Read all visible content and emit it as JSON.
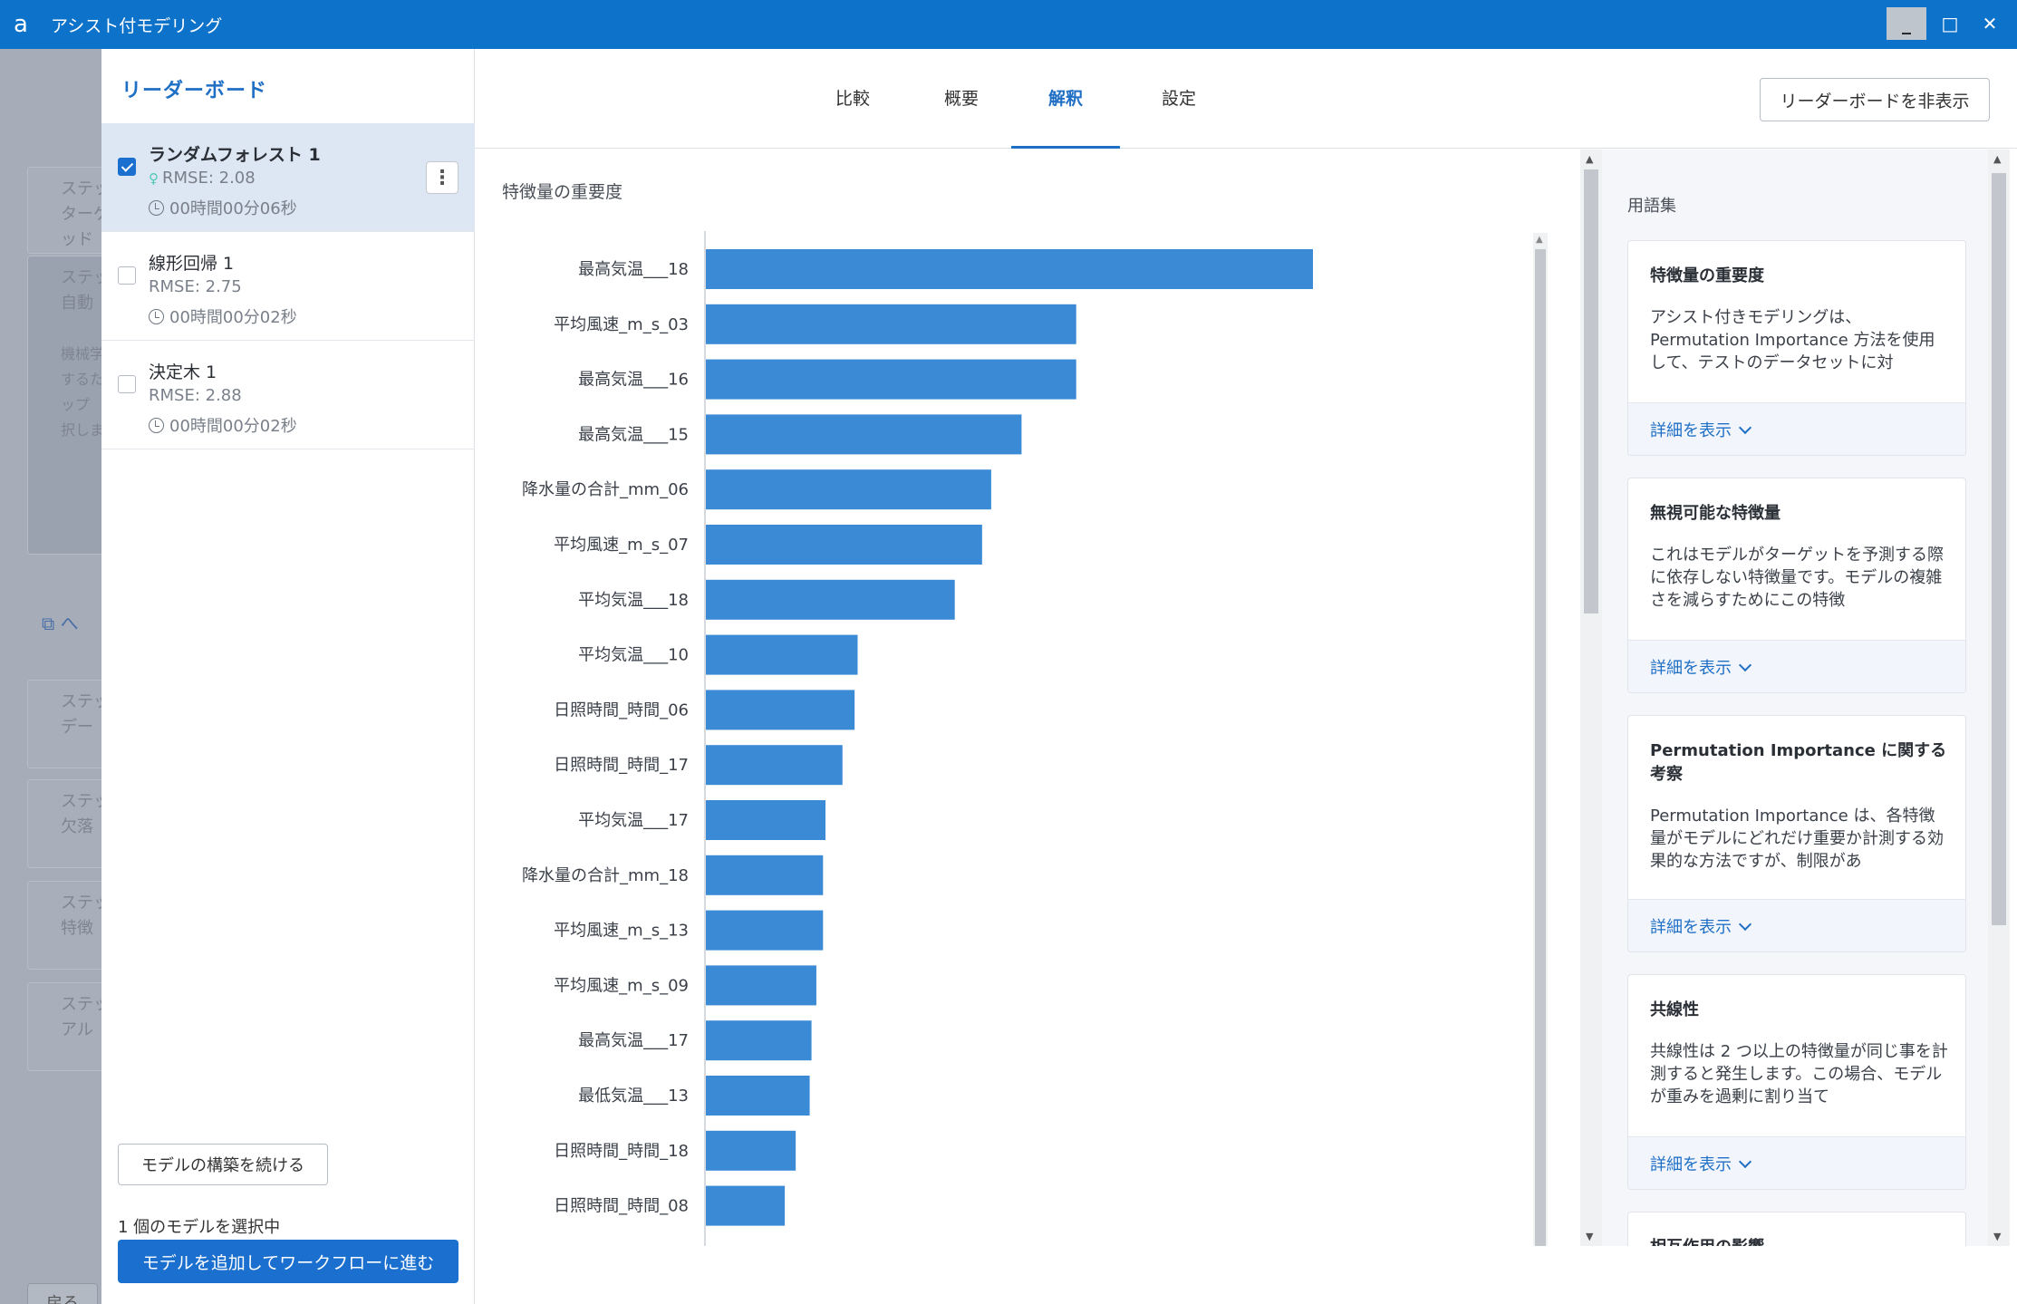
{
  "window": {
    "title": "アシスト付モデリング",
    "app_icon": "a"
  },
  "background": {
    "cards": [
      "ステップ\nターゲ\nッド",
      "ステップ\n自動",
      "機械学\nするた\nップ\n択しま",
      "ステップ\nデー",
      "ステップ\n欠落",
      "ステップ\n特徴",
      "ステップ\nアル"
    ],
    "link_icon": "external-link-icon",
    "link_text": "へ",
    "back_label": "戻る"
  },
  "leaderboard": {
    "title": "リーダーボード",
    "models": [
      {
        "name": "ランダムフォレスト 1",
        "rmse": "RMSE: 2.08",
        "time": "00時間00分06秒",
        "checked": true,
        "best": true
      },
      {
        "name": "線形回帰 1",
        "rmse": "RMSE: 2.75",
        "time": "00時間00分02秒",
        "checked": false,
        "best": false
      },
      {
        "name": "決定木 1",
        "rmse": "RMSE: 2.88",
        "time": "00時間00分02秒",
        "checked": false,
        "best": false
      }
    ],
    "continue_label": "モデルの構築を続ける",
    "selected_count": "1 個のモデルを選択中",
    "add_label": "モデルを追加してワークフローに進む"
  },
  "tabs": [
    {
      "label": "比較",
      "active": false
    },
    {
      "label": "概要",
      "active": false
    },
    {
      "label": "解釈",
      "active": true
    },
    {
      "label": "設定",
      "active": false
    }
  ],
  "hide_leaderboard_label": "リーダーボードを非表示",
  "chart_title": "特徴量の重要度",
  "chart_data": {
    "type": "bar",
    "orientation": "horizontal",
    "title": "特徴量の重要度",
    "bar_color": "#3a8ad6",
    "categories": [
      "最高気温___18",
      "平均風速_m_s_03",
      "最高気温___16",
      "最高気温___15",
      "降水量の合計_mm_06",
      "平均風速_m_s_07",
      "平均気温___18",
      "平均気温___10",
      "日照時間_時間_06",
      "日照時間_時間_17",
      "平均気温___17",
      "降水量の合計_mm_18",
      "平均風速_m_s_13",
      "平均風速_m_s_09",
      "最高気温___17",
      "最低気温___13",
      "日照時間_時間_18",
      "日照時間_時間_08"
    ],
    "values": [
      1.0,
      0.61,
      0.61,
      0.52,
      0.47,
      0.455,
      0.41,
      0.25,
      0.245,
      0.225,
      0.197,
      0.193,
      0.193,
      0.182,
      0.174,
      0.171,
      0.148,
      0.13
    ],
    "xlim": [
      0,
      1.5
    ],
    "grid": false,
    "legend": "none"
  },
  "glossary": {
    "title": "用語集",
    "more_label": "詳細を表示",
    "cards": [
      {
        "title": "特徴量の重要度",
        "text": "アシスト付きモデリングは、Permutation Importance 方法を使用して、テストのデータセットに対"
      },
      {
        "title": "無視可能な特徴量",
        "text": "これはモデルがターゲットを予測する際に依存しない特徴量です。モデルの複雑さを減らすためにこの特徴"
      },
      {
        "title": "Permutation Importance に関する考察",
        "text": "Permutation Importance は、各特徴量がモデルにどれだけ重要か計測する効果的な方法ですが、制限があ"
      },
      {
        "title": "共線性",
        "text": "共線性は 2 つ以上の特徴量が同じ事を計測すると発生します。この場合、モデルが重みを過剰に割り当て"
      },
      {
        "title": "相互作用の影響",
        "text": ""
      }
    ]
  }
}
